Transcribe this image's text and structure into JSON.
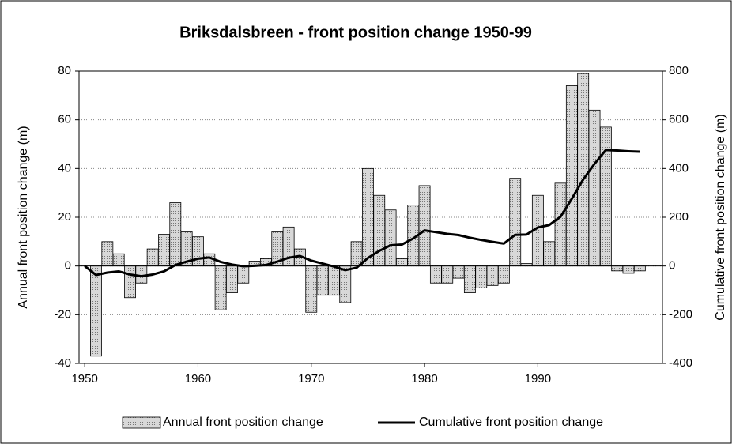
{
  "chart_data": {
    "type": "bar-line",
    "title": "Briksdalsbreen - front position change 1950-99",
    "ylabel": "Annual front position change (m)",
    "y2label": "Cumulative front position change (m)",
    "xlim": [
      1949.5,
      2001
    ],
    "xticks": [
      1950,
      1960,
      1970,
      1980,
      1990
    ],
    "ylim": [
      -40,
      80
    ],
    "yticks": [
      -40,
      -20,
      0,
      20,
      40,
      60,
      80
    ],
    "y2lim": [
      -400,
      800
    ],
    "y2ticks": [
      -400,
      -200,
      0,
      200,
      400,
      600,
      800
    ],
    "grid": true,
    "legend": "bottom",
    "series": [
      {
        "name": "Annual front position change",
        "type": "bar",
        "color": "#c8c8c8",
        "x": [
          1951,
          1952,
          1953,
          1954,
          1955,
          1956,
          1957,
          1958,
          1959,
          1960,
          1961,
          1962,
          1963,
          1964,
          1965,
          1966,
          1967,
          1968,
          1969,
          1970,
          1971,
          1972,
          1973,
          1974,
          1975,
          1976,
          1977,
          1978,
          1979,
          1980,
          1981,
          1982,
          1983,
          1984,
          1985,
          1986,
          1987,
          1988,
          1989,
          1990,
          1991,
          1992,
          1993,
          1994,
          1995,
          1996,
          1997,
          1998,
          1999
        ],
        "values": [
          -37,
          10,
          5,
          -13,
          -7,
          7,
          13,
          26,
          14,
          12,
          5,
          -18,
          -11,
          -7,
          2,
          3,
          14,
          16,
          7,
          -19,
          -12,
          -12,
          -15,
          10,
          40,
          29,
          23,
          3,
          25,
          33,
          -7,
          -7,
          -5,
          -11,
          -9,
          -8,
          -7,
          36,
          1,
          29,
          10,
          34,
          74,
          79,
          64,
          57,
          -2,
          -3,
          -2
        ]
      },
      {
        "name": "Cumulative front position change",
        "type": "line",
        "color": "#000000",
        "axis": "y2",
        "x": [
          1950,
          1951,
          1952,
          1953,
          1954,
          1955,
          1956,
          1957,
          1958,
          1959,
          1960,
          1961,
          1962,
          1963,
          1964,
          1965,
          1966,
          1967,
          1968,
          1969,
          1970,
          1971,
          1972,
          1973,
          1974,
          1975,
          1976,
          1977,
          1978,
          1979,
          1980,
          1981,
          1982,
          1983,
          1984,
          1985,
          1986,
          1987,
          1988,
          1989,
          1990,
          1991,
          1992,
          1993,
          1994,
          1995,
          1996,
          1997,
          1998,
          1999
        ],
        "values": [
          0,
          -37,
          -27,
          -22,
          -35,
          -42,
          -35,
          -22,
          4,
          18,
          30,
          35,
          17,
          6,
          -1,
          1,
          4,
          18,
          34,
          41,
          22,
          10,
          -2,
          -17,
          -7,
          33,
          62,
          85,
          88,
          113,
          146,
          139,
          132,
          127,
          116,
          107,
          99,
          92,
          128,
          129,
          158,
          168,
          202,
          276,
          355,
          419,
          476,
          474,
          471,
          469
        ]
      }
    ]
  }
}
